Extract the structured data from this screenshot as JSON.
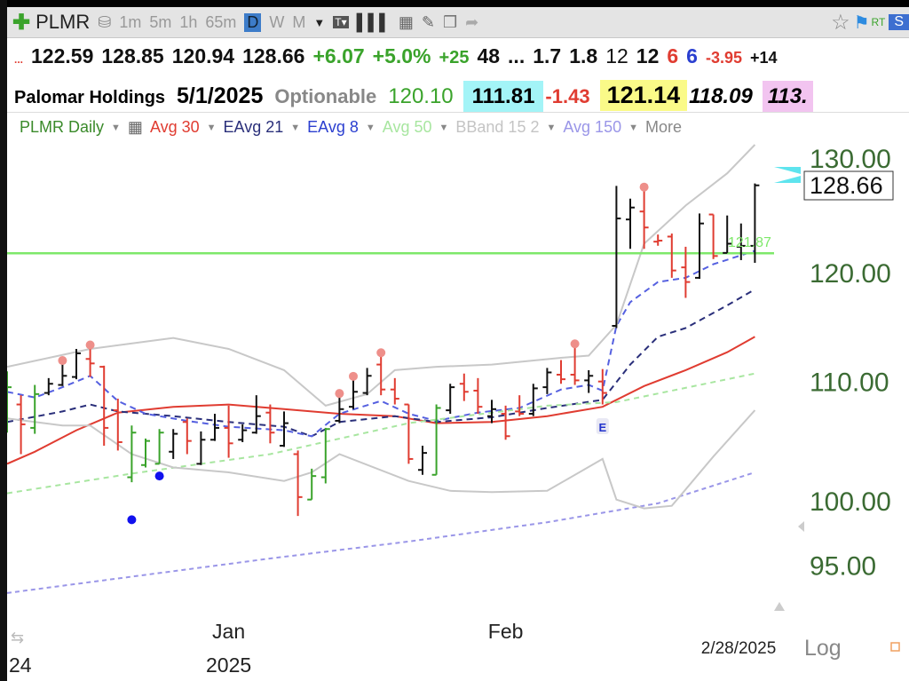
{
  "toolbar": {
    "symbol": "PLMR",
    "intervals": [
      "1m",
      "5m",
      "1h",
      "65m"
    ],
    "selected_interval": "D",
    "other_intervals": [
      "W",
      "M"
    ],
    "rt_label": "RT",
    "s_label": "S"
  },
  "quote": {
    "dots": "...",
    "open": "122.59",
    "high": "128.85",
    "low": "120.94",
    "last": "128.66",
    "change": "+6.07",
    "change_pct": "+5.0%",
    "v1": "+25",
    "v2": "48",
    "v3": "...",
    "v4": "1.7",
    "v5": "1.8",
    "v6": "12",
    "v7": "12",
    "v8": "6",
    "v9": "6",
    "v10": "-3.95",
    "v11": "+14"
  },
  "info": {
    "company": "Palomar Holdings",
    "date": "5/1/2025",
    "optionable": "Optionable",
    "f1": "120.10",
    "f2": "111.81",
    "f3": "-1.43",
    "f4": "121.14",
    "f5": "118.09",
    "f6": "113."
  },
  "legend": {
    "chart_name": "PLMR Daily",
    "items": [
      {
        "label": "Avg 30",
        "color": "#e03c31"
      },
      {
        "label": "EAvg 21",
        "color": "#2a2f7a"
      },
      {
        "label": "EAvg 8",
        "color": "#2b3fd0"
      },
      {
        "label": "Avg 50",
        "color": "#a8e6a0"
      },
      {
        "label": "BBand 15 2",
        "color": "#c4c4c4"
      },
      {
        "label": "Avg 150",
        "color": "#9a96e8"
      }
    ],
    "more": "More"
  },
  "chart_data": {
    "type": "ohlc",
    "scale": "log",
    "ylim": [
      92,
      133
    ],
    "y_ticks": [
      "130.00",
      "120.00",
      "110.00",
      "100.00",
      "95.00"
    ],
    "y_tick_values": [
      130,
      120,
      110,
      100,
      95
    ],
    "last_price_label": "128.66",
    "x_ticks": [
      {
        "label": "Jan",
        "bar": 17
      },
      {
        "label": "Feb",
        "bar": 37
      }
    ],
    "year_labels": [
      {
        "label": "24",
        "bar": 2
      },
      {
        "label": "2025",
        "bar": 17
      }
    ],
    "end_date": "2/28/2025",
    "scale_label": "Log",
    "colors": {
      "up": "#111111",
      "green": "#3aa32b",
      "red": "#e03c31"
    },
    "bars": [
      [
        107.0,
        110.9,
        105.6,
        109.5,
        "green"
      ],
      [
        108.0,
        108.8,
        103.8,
        106.3,
        "red"
      ],
      [
        106.0,
        109.7,
        105.5,
        108.9,
        "green"
      ],
      [
        109.0,
        110.3,
        108.8,
        109.8,
        "black"
      ],
      [
        109.7,
        111.7,
        109.6,
        110.5,
        "black"
      ],
      [
        110.4,
        112.9,
        110.2,
        112.5,
        "black"
      ],
      [
        112.0,
        113.1,
        110.4,
        111.6,
        "red"
      ],
      [
        111.3,
        111.4,
        104.5,
        106.0,
        "red"
      ],
      [
        107.5,
        108.5,
        104.1,
        104.8,
        "red"
      ],
      [
        101.9,
        106.2,
        101.5,
        105.6,
        "green"
      ],
      [
        102.9,
        105.1,
        102.7,
        104.9,
        "green"
      ],
      [
        103.0,
        105.9,
        103.0,
        105.6,
        "green"
      ],
      [
        104.0,
        105.9,
        103.4,
        105.5,
        "black"
      ],
      [
        106.5,
        106.8,
        103.8,
        104.9,
        "red"
      ],
      [
        103.0,
        105.7,
        102.9,
        105.0,
        "black"
      ],
      [
        105.0,
        107.2,
        104.9,
        106.0,
        "black"
      ],
      [
        106.0,
        107.9,
        103.5,
        104.7,
        "red"
      ],
      [
        105.0,
        106.3,
        104.8,
        105.8,
        "black"
      ],
      [
        105.6,
        108.8,
        105.5,
        107.0,
        "black"
      ],
      [
        107.3,
        108.0,
        104.7,
        105.6,
        "red"
      ],
      [
        104.5,
        107.4,
        104.4,
        106.4,
        "black"
      ],
      [
        103.8,
        104.1,
        98.8,
        100.3,
        "red"
      ],
      [
        100.1,
        102.6,
        100.1,
        102.0,
        "green"
      ],
      [
        101.9,
        106.0,
        101.4,
        105.9,
        "green"
      ],
      [
        106.6,
        108.8,
        106.4,
        107.6,
        "black"
      ],
      [
        107.8,
        110.3,
        107.6,
        109.1,
        "black"
      ],
      [
        109.0,
        111.2,
        108.8,
        110.5,
        "black"
      ],
      [
        111.5,
        112.4,
        108.8,
        109.3,
        "red"
      ],
      [
        109.3,
        110.3,
        108.0,
        108.5,
        "red"
      ],
      [
        108.0,
        108.0,
        103.0,
        103.4,
        "red"
      ],
      [
        102.5,
        104.5,
        102.1,
        103.9,
        "black"
      ],
      [
        102.1,
        108.0,
        102.1,
        107.7,
        "green"
      ],
      [
        107.5,
        109.8,
        107.2,
        109.5,
        "black"
      ],
      [
        109.8,
        110.7,
        108.3,
        109.1,
        "red"
      ],
      [
        109.2,
        110.3,
        107.2,
        107.8,
        "red"
      ],
      [
        107.0,
        108.4,
        106.4,
        107.6,
        "black"
      ],
      [
        107.2,
        107.9,
        105.0,
        105.3,
        "red"
      ],
      [
        107.4,
        108.8,
        107.0,
        107.2,
        "red"
      ],
      [
        107.2,
        109.8,
        107.0,
        109.4,
        "black"
      ],
      [
        109.5,
        111.2,
        108.9,
        110.8,
        "black"
      ],
      [
        110.6,
        111.9,
        109.8,
        110.2,
        "red"
      ],
      [
        110.6,
        113.2,
        109.7,
        110.1,
        "red"
      ],
      [
        110.1,
        111.0,
        109.0,
        110.5,
        "black"
      ],
      [
        110.0,
        111.1,
        108.0,
        109.0,
        "red"
      ],
      [
        115.0,
        128.6,
        114.8,
        125.3,
        "black"
      ],
      [
        125.2,
        127.3,
        122.3,
        126.4,
        "black"
      ],
      [
        126.0,
        128.3,
        122.3,
        124.4,
        "red"
      ],
      [
        123.0,
        123.7,
        122.6,
        123.1,
        "red"
      ],
      [
        123.5,
        123.8,
        119.5,
        120.2,
        "red"
      ],
      [
        120.5,
        122.5,
        117.6,
        119.1,
        "red"
      ],
      [
        119.5,
        125.8,
        119.4,
        124.8,
        "black"
      ],
      [
        125.7,
        125.7,
        121.3,
        121.6,
        "red"
      ],
      [
        121.9,
        125.6,
        121.9,
        122.8,
        "black"
      ],
      [
        122.5,
        124.8,
        121.2,
        122.59,
        "black"
      ],
      [
        122.59,
        128.85,
        120.94,
        128.66,
        "black"
      ]
    ],
    "indicators": [
      {
        "name": "Avg 30",
        "color": "#e03c31",
        "dash": "",
        "points": [
          [
            1,
            103.0
          ],
          [
            3,
            104.0
          ],
          [
            6,
            105.8
          ],
          [
            9,
            107.3
          ],
          [
            13,
            107.8
          ],
          [
            17,
            108.0
          ],
          [
            21,
            107.6
          ],
          [
            25,
            107.2
          ],
          [
            29,
            107.0
          ],
          [
            32,
            106.4
          ],
          [
            36,
            106.5
          ],
          [
            40,
            107.0
          ],
          [
            44,
            107.8
          ],
          [
            47,
            109.6
          ],
          [
            50,
            111.0
          ],
          [
            53,
            112.6
          ],
          [
            55,
            114.0
          ]
        ]
      },
      {
        "name": "EAvg 21",
        "color": "#2a2f7a",
        "dash": "7 5",
        "points": [
          [
            1,
            106.5
          ],
          [
            5,
            107.4
          ],
          [
            7,
            108.0
          ],
          [
            9,
            107.4
          ],
          [
            13,
            107.0
          ],
          [
            17,
            106.5
          ],
          [
            21,
            106.1
          ],
          [
            23,
            105.3
          ],
          [
            25,
            106.5
          ],
          [
            29,
            107.0
          ],
          [
            32,
            106.5
          ],
          [
            36,
            106.9
          ],
          [
            40,
            107.7
          ],
          [
            44,
            108.4
          ],
          [
            46,
            111.5
          ],
          [
            48,
            114.0
          ],
          [
            50,
            114.8
          ],
          [
            53,
            116.9
          ],
          [
            55,
            118.4
          ]
        ]
      },
      {
        "name": "EAvg 8",
        "color": "#5560e0",
        "dash": "7 5",
        "points": [
          [
            1,
            109.1
          ],
          [
            3,
            108.6
          ],
          [
            5,
            109.5
          ],
          [
            7,
            110.5
          ],
          [
            9,
            108.3
          ],
          [
            11,
            107.2
          ],
          [
            14,
            106.6
          ],
          [
            17,
            106.1
          ],
          [
            21,
            105.8
          ],
          [
            23,
            105.3
          ],
          [
            25,
            107.2
          ],
          [
            28,
            108.3
          ],
          [
            30,
            107.2
          ],
          [
            32,
            106.6
          ],
          [
            35,
            107.3
          ],
          [
            38,
            107.7
          ],
          [
            41,
            109.3
          ],
          [
            43,
            109.7
          ],
          [
            44,
            109.2
          ],
          [
            45,
            115.0
          ],
          [
            46,
            117.2
          ],
          [
            48,
            119.1
          ],
          [
            50,
            119.5
          ],
          [
            52,
            120.8
          ],
          [
            55,
            122.1
          ]
        ]
      },
      {
        "name": "Avg 50",
        "color": "#a8e6a0",
        "dash": "6 5",
        "points": [
          [
            1,
            100.6
          ],
          [
            10,
            102.2
          ],
          [
            20,
            103.8
          ],
          [
            30,
            106.4
          ],
          [
            40,
            107.9
          ],
          [
            45,
            108.2
          ],
          [
            55,
            110.7
          ]
        ]
      },
      {
        "name": "Avg 150",
        "color": "#9a96e8",
        "dash": "5 4",
        "points": [
          [
            1,
            92.9
          ],
          [
            20,
            95.5
          ],
          [
            30,
            96.8
          ],
          [
            40,
            98.3
          ],
          [
            48,
            99.8
          ],
          [
            55,
            102.3
          ]
        ]
      },
      {
        "name": "BBand upper",
        "color": "#c8c8c8",
        "dash": "",
        "points": [
          [
            1,
            111.3
          ],
          [
            7,
            112.9
          ],
          [
            13,
            113.9
          ],
          [
            17,
            112.9
          ],
          [
            21,
            111.0
          ],
          [
            24,
            107.9
          ],
          [
            27,
            108.9
          ],
          [
            29,
            111.0
          ],
          [
            32,
            111.3
          ],
          [
            36,
            111.5
          ],
          [
            41,
            112.1
          ],
          [
            43,
            112.3
          ],
          [
            45,
            115.1
          ],
          [
            47,
            122.8
          ],
          [
            50,
            126.6
          ],
          [
            53,
            129.9
          ],
          [
            55,
            132.9
          ]
        ]
      },
      {
        "name": "BBand lower",
        "color": "#c8c8c8",
        "dash": "",
        "points": [
          [
            1,
            106.8
          ],
          [
            5,
            106.2
          ],
          [
            7,
            106.2
          ],
          [
            10,
            103.8
          ],
          [
            13,
            102.7
          ],
          [
            17,
            102.3
          ],
          [
            21,
            101.6
          ],
          [
            23,
            102.3
          ],
          [
            25,
            103.8
          ],
          [
            30,
            101.6
          ],
          [
            33,
            100.8
          ],
          [
            36,
            100.7
          ],
          [
            40,
            100.8
          ],
          [
            44,
            103.4
          ],
          [
            45,
            100.1
          ],
          [
            47,
            99.4
          ],
          [
            49,
            99.6
          ],
          [
            52,
            103.6
          ],
          [
            55,
            107.5
          ]
        ]
      }
    ],
    "horizontal_line": {
      "value": 121.87,
      "label": "121.87",
      "color": "#7ee86a"
    },
    "high_dots": [
      5,
      7,
      25,
      26,
      28,
      42,
      47
    ],
    "low_dots": [
      [
        10,
        98.5
      ],
      [
        12,
        102.0
      ]
    ],
    "earnings_marker": {
      "bar": 44,
      "label": "E"
    }
  }
}
